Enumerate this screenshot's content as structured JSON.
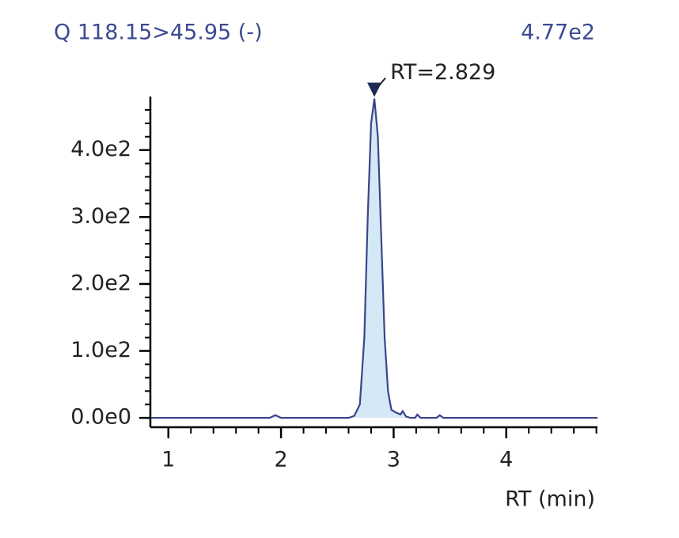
{
  "chart_data": {
    "type": "line",
    "title": "Q 118.15>45.95 (-)",
    "max_label": "4.77e2",
    "xlabel": "RT (min)",
    "x": [
      0.84,
      1.9,
      1.95,
      2.0,
      2.6,
      2.65,
      2.7,
      2.74,
      2.77,
      2.8,
      2.829,
      2.86,
      2.89,
      2.92,
      2.95,
      2.98,
      3.02,
      3.06,
      3.08,
      3.11,
      3.15,
      3.19,
      3.21,
      3.24,
      3.38,
      3.41,
      3.44,
      4.81
    ],
    "series": [
      {
        "color": "#3a4688",
        "fill": "#d4e8f6",
        "values": [
          0,
          0,
          4,
          0,
          0,
          3,
          20,
          120,
          300,
          440,
          477,
          420,
          270,
          120,
          40,
          12,
          8,
          5,
          10,
          2,
          0,
          0,
          5,
          0,
          0,
          4,
          0,
          0
        ]
      }
    ],
    "peak": {
      "x": 2.829,
      "y": 477,
      "label": "RT=2.829",
      "color": "#1d2a55"
    },
    "xlim": [
      0.84,
      4.81
    ],
    "ylim": [
      -14,
      480
    ],
    "xticks": [
      1,
      2,
      3,
      4
    ],
    "yticks": [
      {
        "value": 0,
        "label": "0.0e0"
      },
      {
        "value": 100,
        "label": "1.0e2"
      },
      {
        "value": 200,
        "label": "2.0e2"
      },
      {
        "value": 300,
        "label": "3.0e2"
      },
      {
        "value": 400,
        "label": "4.0e2"
      }
    ],
    "xminorticks": [
      1.2,
      1.4,
      1.6,
      1.8,
      2.2,
      2.4,
      2.6,
      2.8,
      3.2,
      3.4,
      3.6,
      3.8,
      4.2,
      4.4,
      4.6,
      4.8
    ],
    "yminorticks": [
      20,
      40,
      60,
      80,
      120,
      140,
      160,
      180,
      220,
      240,
      260,
      280,
      320,
      340,
      360,
      380,
      420,
      440,
      460
    ]
  }
}
